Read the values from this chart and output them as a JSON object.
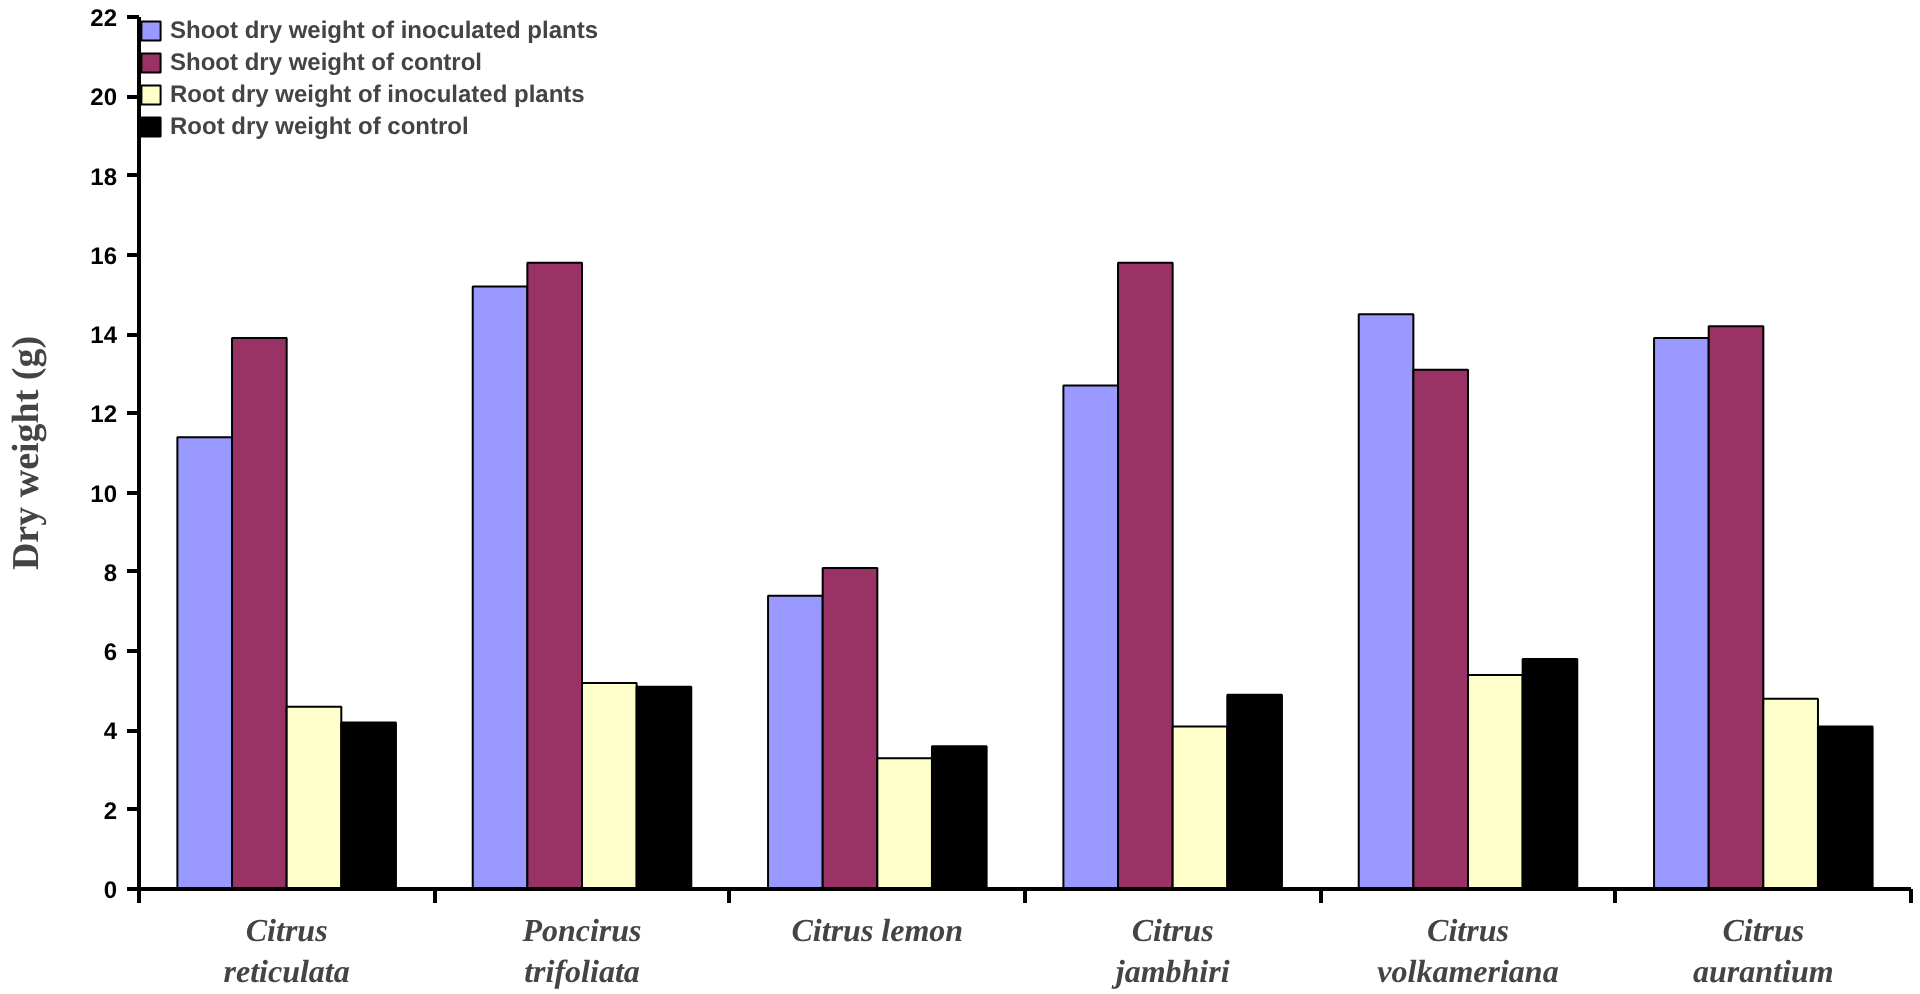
{
  "chart_data": {
    "type": "bar",
    "ylabel": "Dry weight (g)",
    "categories": [
      "Citrus\nreticulata",
      "Poncirus\ntrifoliata",
      "Citrus lemon",
      "Citrus\njambhiri",
      "Citrus\nvolkameriana",
      "Citrus\naurantium"
    ],
    "series": [
      {
        "name": "Shoot dry weight of inoculated plants",
        "color": "#9999ff",
        "values": [
          11.4,
          15.2,
          7.4,
          12.7,
          14.5,
          13.9
        ]
      },
      {
        "name": "Shoot dry weight of control",
        "color": "#993366",
        "values": [
          13.9,
          15.8,
          8.1,
          15.8,
          13.1,
          14.2
        ]
      },
      {
        "name": "Root dry weight of inoculated plants",
        "color": "#ffffcc",
        "values": [
          4.6,
          5.2,
          3.3,
          4.1,
          5.4,
          4.8
        ]
      },
      {
        "name": "Root dry weight of control",
        "color": "#000000",
        "values": [
          4.2,
          5.1,
          3.6,
          4.9,
          5.8,
          4.1
        ]
      }
    ],
    "ylim": [
      0,
      22
    ],
    "yticks": [
      0,
      2,
      4,
      6,
      8,
      10,
      12,
      14,
      16,
      18,
      20,
      22
    ],
    "grid": false,
    "legend": "top left"
  }
}
